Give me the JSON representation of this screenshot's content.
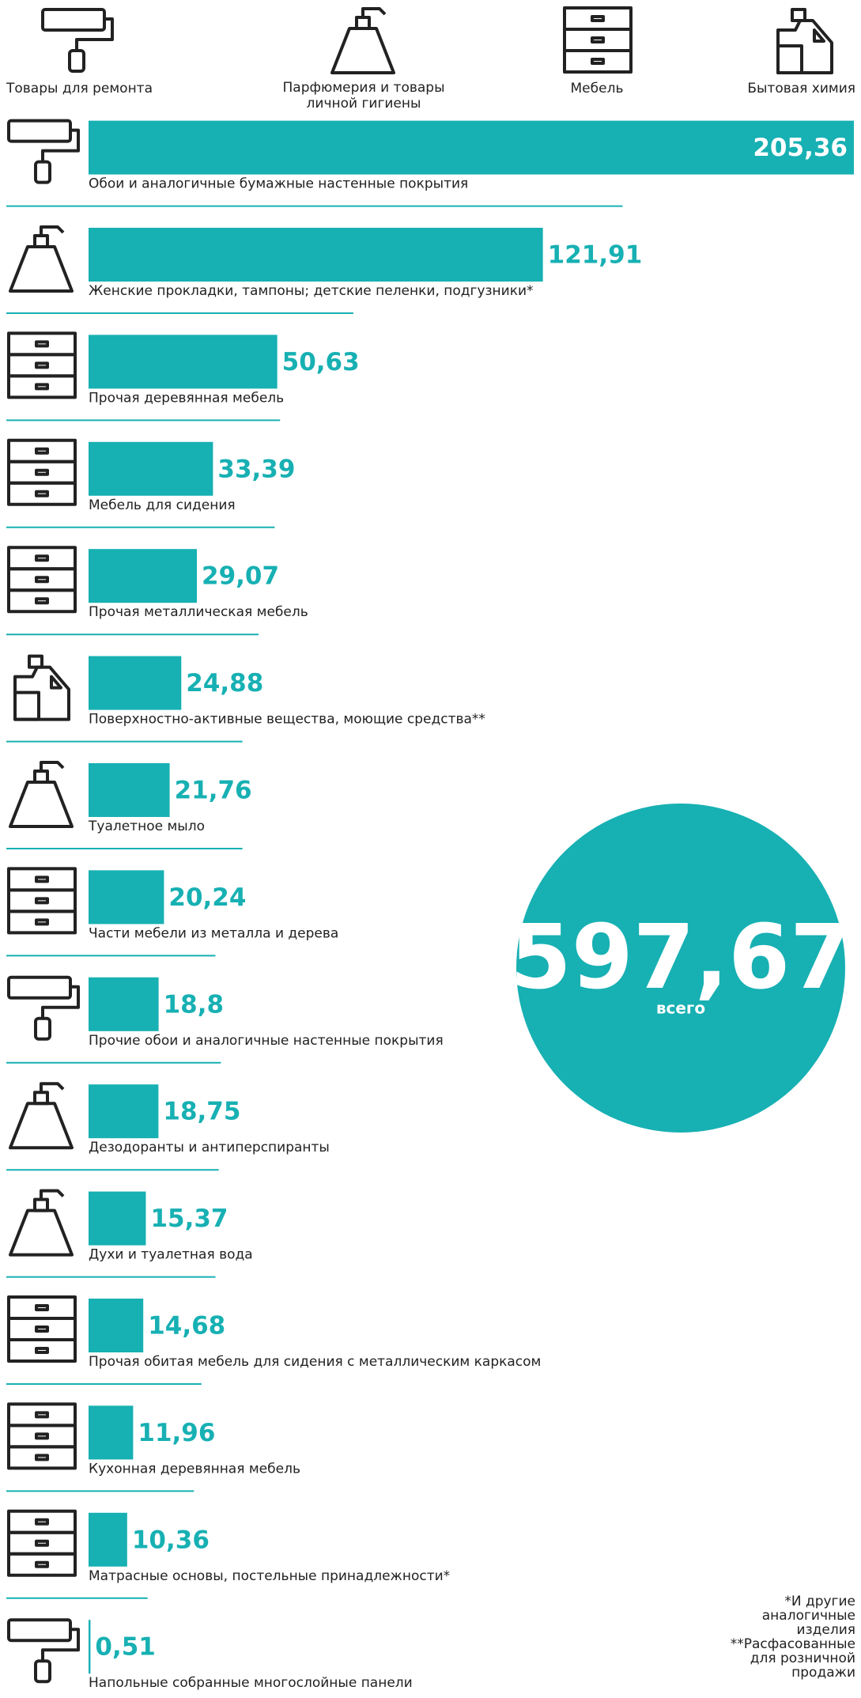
{
  "chart_data": {
    "type": "bar",
    "legend": [
      "Товары для ремонта",
      "Парфюмерия и товары личной гигиены",
      "Мебель",
      "Бытовая химия"
    ],
    "categories": [
      "Обои и аналогичные бумажные настенные покрытия",
      "Женские прокладки, тампоны; детские пеленки, подгузники*",
      "Прочая деревянная мебель",
      "Мебель для сидения",
      "Прочая металлическая мебель",
      "Поверхностно-активные вещества, моющие средства**",
      "Туалетное мыло",
      "Части мебели из металла и дерева",
      "Прочие обои и аналогичные настенные покрытия",
      "Дезодоранты и антиперспиранты",
      "Духи и туалетная вода",
      "Прочая обитая мебель для сидения с металлическим каркасом",
      "Кухонная деревянная мебель",
      "Матрасные основы, постельные принадлежности*",
      "Напольные собранные многослойные панели"
    ],
    "values": [
      205.36,
      121.91,
      50.63,
      33.39,
      29.07,
      24.88,
      21.76,
      20.24,
      18.8,
      18.75,
      15.37,
      14.68,
      11.96,
      10.36,
      0.51
    ],
    "value_labels": [
      "205,36",
      "121,91",
      "50,63",
      "33,39",
      "29,07",
      "24,88",
      "21,76",
      "20,24",
      "18,8",
      "18,75",
      "15,37",
      "14,68",
      "11,96",
      "10,36",
      "0,51"
    ],
    "color": "#17b0b3",
    "total": {
      "value": 597.67,
      "label": "597,67"
    },
    "total_caption": "всего",
    "notes": [
      "*И другие аналогичные изделия",
      "**Расфасованные для розничной продажи"
    ]
  }
}
